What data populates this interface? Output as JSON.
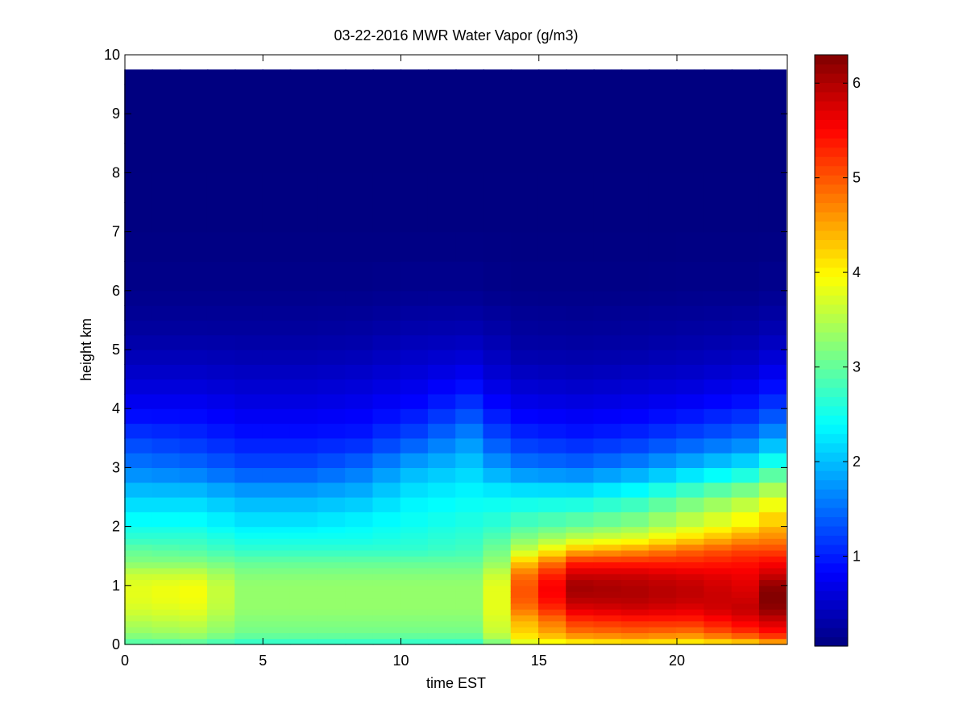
{
  "chart_data": {
    "type": "heatmap",
    "title": "03-22-2016 MWR Water Vapor (g/m3)",
    "xlabel": "time EST",
    "ylabel": "height km",
    "xlim": [
      0,
      24
    ],
    "ylim": [
      0,
      10
    ],
    "x_ticks": [
      0,
      5,
      10,
      15,
      20
    ],
    "y_ticks": [
      0,
      1,
      2,
      3,
      4,
      5,
      6,
      7,
      8,
      9,
      10
    ],
    "colorbar": {
      "colormap": "jet",
      "range": [
        0.05,
        6.3
      ],
      "ticks": [
        1,
        2,
        3,
        4,
        5,
        6
      ]
    },
    "x_times": [
      0.5,
      1.5,
      2.5,
      3.5,
      4.5,
      5.5,
      6.5,
      7.5,
      8.5,
      9.5,
      10.5,
      11.5,
      12.5,
      13.5,
      14.5,
      15.5,
      16.5,
      17.5,
      18.5,
      19.5,
      20.5,
      21.5,
      22.5,
      23.5
    ],
    "heights_km": [
      0.0,
      0.1,
      0.2,
      0.3,
      0.4,
      0.5,
      0.6,
      0.7,
      0.8,
      0.9,
      1.0,
      1.1,
      1.2,
      1.3,
      1.4,
      1.5,
      1.6,
      1.7,
      1.8,
      1.9,
      2.0,
      2.25,
      2.5,
      2.75,
      3.0,
      3.25,
      3.5,
      3.75,
      4.0,
      4.25,
      4.5,
      4.75,
      5.0,
      5.25,
      5.5,
      5.75,
      6.0,
      6.5,
      7.0,
      7.5,
      8.0,
      8.5,
      9.0,
      9.5,
      9.75
    ],
    "anchor_profiles": {
      "heights_km": [
        0,
        0.1,
        0.2,
        0.4,
        0.6,
        0.8,
        1.0,
        1.2,
        1.4,
        1.6,
        1.8,
        2.0,
        2.5,
        3.0,
        3.5,
        4.0,
        4.5,
        5.0,
        5.5,
        6.0,
        7.0,
        9.75
      ],
      "profiles": [
        {
          "time": 0.5,
          "values": [
            2.8,
            3.1,
            3.3,
            3.5,
            3.7,
            3.8,
            3.8,
            3.6,
            3.2,
            3.0,
            2.7,
            2.5,
            2.1,
            1.6,
            1.2,
            0.8,
            0.55,
            0.35,
            0.2,
            0.12,
            0.06,
            0.05
          ]
        },
        {
          "time": 2.5,
          "values": [
            2.8,
            3.2,
            3.4,
            3.6,
            3.8,
            3.9,
            3.9,
            3.6,
            3.2,
            2.9,
            2.7,
            2.5,
            2.1,
            1.5,
            1.1,
            0.8,
            0.55,
            0.35,
            0.2,
            0.12,
            0.06,
            0.05
          ]
        },
        {
          "time": 4.5,
          "values": [
            2.6,
            2.9,
            3.1,
            3.2,
            3.3,
            3.3,
            3.3,
            3.2,
            3.0,
            2.7,
            2.5,
            2.3,
            1.9,
            1.3,
            0.95,
            0.7,
            0.5,
            0.32,
            0.2,
            0.12,
            0.06,
            0.05
          ]
        },
        {
          "time": 6.5,
          "values": [
            2.6,
            2.9,
            3.1,
            3.2,
            3.3,
            3.3,
            3.3,
            3.2,
            3.0,
            2.7,
            2.5,
            2.3,
            1.9,
            1.3,
            0.95,
            0.7,
            0.5,
            0.32,
            0.2,
            0.12,
            0.06,
            0.05
          ]
        },
        {
          "time": 8.5,
          "values": [
            2.6,
            2.9,
            3.1,
            3.2,
            3.3,
            3.3,
            3.3,
            3.2,
            3.0,
            2.7,
            2.5,
            2.4,
            2.0,
            1.5,
            1.0,
            0.75,
            0.55,
            0.35,
            0.22,
            0.12,
            0.06,
            0.05
          ]
        },
        {
          "time": 10.5,
          "values": [
            2.6,
            2.9,
            3.1,
            3.2,
            3.3,
            3.3,
            3.3,
            3.2,
            3.0,
            2.7,
            2.6,
            2.5,
            2.3,
            1.9,
            1.3,
            0.9,
            0.65,
            0.45,
            0.28,
            0.15,
            0.06,
            0.05
          ]
        },
        {
          "time": 12.5,
          "values": [
            2.6,
            2.9,
            3.1,
            3.2,
            3.3,
            3.3,
            3.3,
            3.2,
            3.0,
            2.8,
            2.7,
            2.6,
            2.4,
            2.1,
            1.7,
            1.2,
            0.8,
            0.5,
            0.3,
            0.15,
            0.06,
            0.05
          ]
        },
        {
          "time": 13.5,
          "values": [
            3.0,
            3.4,
            3.6,
            3.7,
            3.8,
            3.8,
            3.8,
            3.6,
            3.3,
            3.1,
            2.9,
            2.7,
            2.4,
            1.8,
            1.3,
            0.9,
            0.6,
            0.4,
            0.25,
            0.12,
            0.06,
            0.05
          ]
        },
        {
          "time": 14.5,
          "values": [
            3.6,
            4.0,
            4.2,
            4.4,
            4.8,
            5.0,
            5.0,
            4.8,
            4.3,
            3.6,
            3.2,
            2.9,
            2.4,
            1.6,
            1.1,
            0.75,
            0.5,
            0.3,
            0.2,
            0.1,
            0.06,
            0.05
          ]
        },
        {
          "time": 16.5,
          "values": [
            3.8,
            4.4,
            4.8,
            5.2,
            5.7,
            6.0,
            6.1,
            5.8,
            5.3,
            4.4,
            3.6,
            3.1,
            2.4,
            1.5,
            1.0,
            0.7,
            0.45,
            0.28,
            0.18,
            0.1,
            0.06,
            0.05
          ]
        },
        {
          "time": 18.5,
          "values": [
            3.9,
            4.5,
            4.9,
            5.3,
            5.8,
            6.0,
            6.0,
            5.8,
            5.3,
            4.6,
            3.8,
            3.3,
            2.6,
            1.7,
            1.1,
            0.75,
            0.5,
            0.3,
            0.2,
            0.1,
            0.06,
            0.05
          ]
        },
        {
          "time": 20.5,
          "values": [
            3.8,
            4.4,
            4.8,
            5.3,
            5.7,
            5.9,
            5.9,
            5.7,
            5.3,
            4.9,
            4.2,
            3.7,
            3.0,
            2.0,
            1.3,
            0.85,
            0.55,
            0.35,
            0.22,
            0.12,
            0.06,
            0.05
          ]
        },
        {
          "time": 22.5,
          "values": [
            4.0,
            4.7,
            5.2,
            5.6,
            5.9,
            5.8,
            5.7,
            5.6,
            5.4,
            5.1,
            4.6,
            4.1,
            3.4,
            2.3,
            1.5,
            1.0,
            0.65,
            0.4,
            0.25,
            0.12,
            0.06,
            0.05
          ]
        },
        {
          "time": 23.5,
          "values": [
            4.2,
            5.0,
            5.4,
            5.8,
            6.2,
            6.3,
            6.2,
            5.8,
            5.5,
            5.1,
            4.7,
            4.4,
            3.7,
            2.7,
            1.8,
            1.2,
            0.8,
            0.5,
            0.3,
            0.15,
            0.06,
            0.05
          ]
        }
      ]
    }
  }
}
